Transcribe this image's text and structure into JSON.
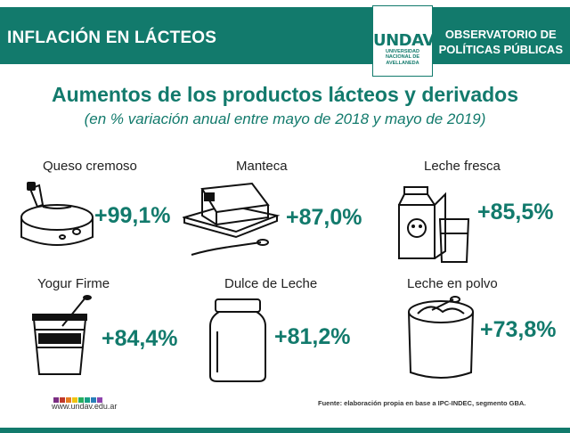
{
  "header": {
    "title": "INFLACIÓN EN LÁCTEOS",
    "org_line1": "OBSERVATORIO DE",
    "org_line2": "POLÍTICAS PÚBLICAS",
    "logo": {
      "word": "UNDAV",
      "sub1": "UNIVERSIDAD",
      "sub2": "NACIONAL DE",
      "sub3": "AVELLANEDA"
    }
  },
  "headline": "Aumentos de los productos lácteos y derivados",
  "subheadline": "(en % variación anual entre mayo de 2018 y mayo de 2019)",
  "products": [
    {
      "name": "Queso cremoso",
      "value": "+99,1%",
      "icon": "cheese-icon"
    },
    {
      "name": "Manteca",
      "value": "+87,0%",
      "icon": "butter-icon"
    },
    {
      "name": "Leche fresca",
      "value": "+85,5%",
      "icon": "milk-carton-icon"
    },
    {
      "name": "Yogur Firme",
      "value": "+84,4%",
      "icon": "yogurt-icon"
    },
    {
      "name": "Dulce de Leche",
      "value": "+81,2%",
      "icon": "jar-icon"
    },
    {
      "name": "Leche en polvo",
      "value": "+73,8%",
      "icon": "powder-can-icon"
    }
  ],
  "footer": {
    "url": "www.undav.edu.ar",
    "source": "Fuente: elaboración propia en base a IPC-INDEC, segmento GBA.",
    "dot_colors": [
      "#7b2e83",
      "#c0392b",
      "#e67e22",
      "#f1c40f",
      "#27ae60",
      "#16a085",
      "#2980b9",
      "#8e44ad"
    ]
  },
  "colors": {
    "accent": "#127a6c"
  }
}
